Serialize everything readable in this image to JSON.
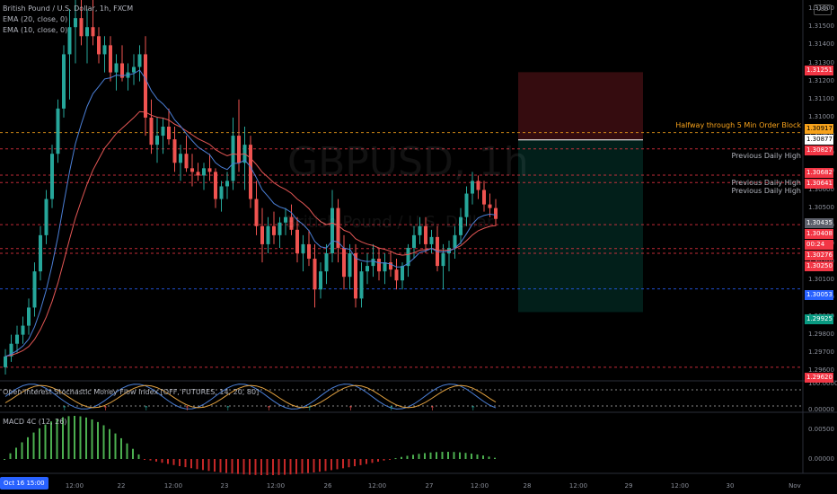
{
  "legend": {
    "title": "British Pound / U.S. Dollar, 1h, FXCM",
    "ema20": "EMA (20, close, 0)",
    "ema10": "EMA (10, close, 0)",
    "oi_indicator": "Open Interest Stochastic Money Flow Index [OFF, FUTURES, 14, 20, 80]",
    "macd": "MACD 4C (12, 26)"
  },
  "watermark": {
    "symbol": "GBPUSD, 1h",
    "description": "British Pound / U.S. Dollar"
  },
  "currency_badge": "USD",
  "annotations": {
    "halfway": "Halfway through 5 Min Order Block",
    "pdh1": "Previous Daily High",
    "pdh2": "Previous Daily High",
    "pdh3": "Previous Daily High"
  },
  "price_axis_labels": [
    "1.31600",
    "1.31500",
    "1.31400",
    "1.31300",
    "1.31200",
    "1.31100",
    "1.31000",
    "1.30900",
    "1.30800",
    "1.30700",
    "1.30600",
    "1.30500",
    "1.30400",
    "1.30300",
    "1.30200",
    "1.30100",
    "1.30000",
    "1.29900",
    "1.29800",
    "1.29700",
    "1.29600"
  ],
  "price_tags": [
    {
      "value": "1.31251",
      "color": "#f23645"
    },
    {
      "value": "1.30917",
      "color": "#f7a21b"
    },
    {
      "value": "1.30877",
      "color": "#ffffff"
    },
    {
      "value": "1.30827",
      "color": "#f23645"
    },
    {
      "value": "1.30682",
      "color": "#f23645"
    },
    {
      "value": "1.30641",
      "color": "#f23645"
    },
    {
      "value": "1.30435",
      "color": "#5d606b"
    },
    {
      "value": "1.30408",
      "color": "#f23645"
    },
    {
      "value": "00:24",
      "color": "#f23645"
    },
    {
      "value": "1.30276",
      "color": "#f23645"
    },
    {
      "value": "1.30250",
      "color": "#f23645"
    },
    {
      "value": "1.30053",
      "color": "#2962ff"
    },
    {
      "value": "1.29925",
      "color": "#089981"
    },
    {
      "value": "1.29620",
      "color": "#f23645"
    }
  ],
  "oi_axis_labels": [
    "100.00000",
    "0.00000"
  ],
  "macd_axis_labels": [
    "0.00500",
    "0.00000"
  ],
  "x_axis_labels": [
    "12:00",
    "22",
    "12:00",
    "23",
    "12:00",
    "26",
    "12:00",
    "27",
    "12:00",
    "28",
    "12:00",
    "29",
    "12:00",
    "30",
    "Nov"
  ],
  "date_badge": "Oct 16  15:00",
  "chart_data": {
    "type": "candlestick",
    "symbol": "GBPUSD",
    "interval": "1h",
    "ylim": [
      1.2955,
      1.3165
    ],
    "candles": [
      [
        1.2962,
        1.2972,
        1.2958,
        1.2968
      ],
      [
        1.2968,
        1.298,
        1.2965,
        1.2975
      ],
      [
        1.2975,
        1.2985,
        1.297,
        1.298
      ],
      [
        1.298,
        1.299,
        1.2975,
        1.2985
      ],
      [
        1.2985,
        1.3,
        1.298,
        1.2995
      ],
      [
        1.2995,
        1.302,
        1.299,
        1.3015
      ],
      [
        1.3015,
        1.304,
        1.301,
        1.3035
      ],
      [
        1.3035,
        1.306,
        1.303,
        1.3055
      ],
      [
        1.3055,
        1.3085,
        1.305,
        1.308
      ],
      [
        1.308,
        1.311,
        1.3075,
        1.3105
      ],
      [
        1.3105,
        1.314,
        1.31,
        1.3135
      ],
      [
        1.3135,
        1.316,
        1.311,
        1.315
      ],
      [
        1.315,
        1.317,
        1.313,
        1.3155
      ],
      [
        1.3155,
        1.3175,
        1.314,
        1.3145
      ],
      [
        1.3145,
        1.316,
        1.313,
        1.315
      ],
      [
        1.315,
        1.3165,
        1.314,
        1.3145
      ],
      [
        1.3145,
        1.315,
        1.313,
        1.3135
      ],
      [
        1.3135,
        1.3145,
        1.3125,
        1.314
      ],
      [
        1.314,
        1.3145,
        1.312,
        1.3125
      ],
      [
        1.3125,
        1.3135,
        1.3115,
        1.313
      ],
      [
        1.313,
        1.314,
        1.312,
        1.3122
      ],
      [
        1.3122,
        1.313,
        1.3115,
        1.3125
      ],
      [
        1.3125,
        1.3135,
        1.3118,
        1.3128
      ],
      [
        1.3128,
        1.314,
        1.312,
        1.3135
      ],
      [
        1.3135,
        1.3145,
        1.309,
        1.31
      ],
      [
        1.31,
        1.311,
        1.308,
        1.3085
      ],
      [
        1.3085,
        1.31,
        1.3075,
        1.309
      ],
      [
        1.309,
        1.31,
        1.308,
        1.3095
      ],
      [
        1.3095,
        1.3105,
        1.3085,
        1.3088
      ],
      [
        1.3088,
        1.3095,
        1.307,
        1.3075
      ],
      [
        1.3075,
        1.3085,
        1.3065,
        1.308
      ],
      [
        1.308,
        1.309,
        1.307,
        1.3072
      ],
      [
        1.3072,
        1.308,
        1.3062,
        1.307
      ],
      [
        1.307,
        1.3075,
        1.3065,
        1.3068
      ],
      [
        1.3068,
        1.3075,
        1.306,
        1.3072
      ],
      [
        1.3072,
        1.308,
        1.3065,
        1.307
      ],
      [
        1.307,
        1.3072,
        1.305,
        1.3055
      ],
      [
        1.3055,
        1.3065,
        1.3048,
        1.3062
      ],
      [
        1.3062,
        1.307,
        1.3055,
        1.3065
      ],
      [
        1.3065,
        1.31,
        1.306,
        1.309
      ],
      [
        1.309,
        1.311,
        1.307,
        1.3075
      ],
      [
        1.3075,
        1.3095,
        1.306,
        1.3085
      ],
      [
        1.3085,
        1.309,
        1.305,
        1.3055
      ],
      [
        1.3055,
        1.3065,
        1.3035,
        1.304
      ],
      [
        1.304,
        1.305,
        1.302,
        1.303
      ],
      [
        1.303,
        1.3045,
        1.3025,
        1.304
      ],
      [
        1.304,
        1.3048,
        1.303,
        1.3035
      ],
      [
        1.3035,
        1.3045,
        1.3028,
        1.3042
      ],
      [
        1.3042,
        1.305,
        1.3035,
        1.3045
      ],
      [
        1.3045,
        1.3052,
        1.3035,
        1.3038
      ],
      [
        1.3038,
        1.3045,
        1.302,
        1.3025
      ],
      [
        1.3025,
        1.3035,
        1.3015,
        1.303
      ],
      [
        1.303,
        1.3038,
        1.3018,
        1.3022
      ],
      [
        1.3022,
        1.303,
        1.2995,
        1.3005
      ],
      [
        1.3005,
        1.302,
        1.3,
        1.3015
      ],
      [
        1.3015,
        1.303,
        1.3008,
        1.3025
      ],
      [
        1.3025,
        1.306,
        1.302,
        1.305
      ],
      [
        1.305,
        1.3055,
        1.302,
        1.3028
      ],
      [
        1.3028,
        1.3035,
        1.3005,
        1.3012
      ],
      [
        1.3012,
        1.303,
        1.3005,
        1.3025
      ],
      [
        1.3025,
        1.303,
        1.2995,
        1.3
      ],
      [
        1.3,
        1.302,
        1.2995,
        1.3015
      ],
      [
        1.3015,
        1.3025,
        1.3008,
        1.3018
      ],
      [
        1.3018,
        1.303,
        1.3012,
        1.3022
      ],
      [
        1.3022,
        1.3028,
        1.301,
        1.3015
      ],
      [
        1.3015,
        1.3025,
        1.3008,
        1.302
      ],
      [
        1.302,
        1.3026,
        1.3012,
        1.3016
      ],
      [
        1.3016,
        1.3022,
        1.3005,
        1.301
      ],
      [
        1.301,
        1.302,
        1.3005,
        1.3018
      ],
      [
        1.3018,
        1.303,
        1.3012,
        1.3028
      ],
      [
        1.3028,
        1.304,
        1.3022,
        1.3035
      ],
      [
        1.3035,
        1.3045,
        1.303,
        1.304
      ],
      [
        1.304,
        1.3045,
        1.3025,
        1.303
      ],
      [
        1.303,
        1.3038,
        1.3025,
        1.3034
      ],
      [
        1.3034,
        1.304,
        1.3015,
        1.3018
      ],
      [
        1.3018,
        1.303,
        1.3005,
        1.3025
      ],
      [
        1.3025,
        1.3032,
        1.3015,
        1.3028
      ],
      [
        1.3028,
        1.304,
        1.3022,
        1.3035
      ],
      [
        1.3035,
        1.305,
        1.303,
        1.3045
      ],
      [
        1.3045,
        1.3062,
        1.304,
        1.3058
      ],
      [
        1.3058,
        1.307,
        1.3052,
        1.3065
      ],
      [
        1.3065,
        1.3068,
        1.3055,
        1.306
      ],
      [
        1.306,
        1.3065,
        1.3048,
        1.3052
      ],
      [
        1.3052,
        1.3058,
        1.3045,
        1.305
      ],
      [
        1.305,
        1.3055,
        1.304,
        1.3044
      ]
    ],
    "ema20_note": "EMA (20, close, 0)",
    "ema10_note": "EMA (10, close, 0)",
    "horizontal_levels": [
      1.31251,
      1.30917,
      1.30827,
      1.30682,
      1.30641,
      1.30408,
      1.30276,
      1.3025,
      1.30053,
      1.29925,
      1.2962
    ],
    "position": {
      "entry": 1.30877,
      "stop": 1.31251,
      "target": 1.29925
    }
  },
  "colors": {
    "up": "#26a69a",
    "down": "#ef5350",
    "ema20": "#e45755",
    "ema10": "#4b7fd6",
    "bg": "#000000"
  }
}
